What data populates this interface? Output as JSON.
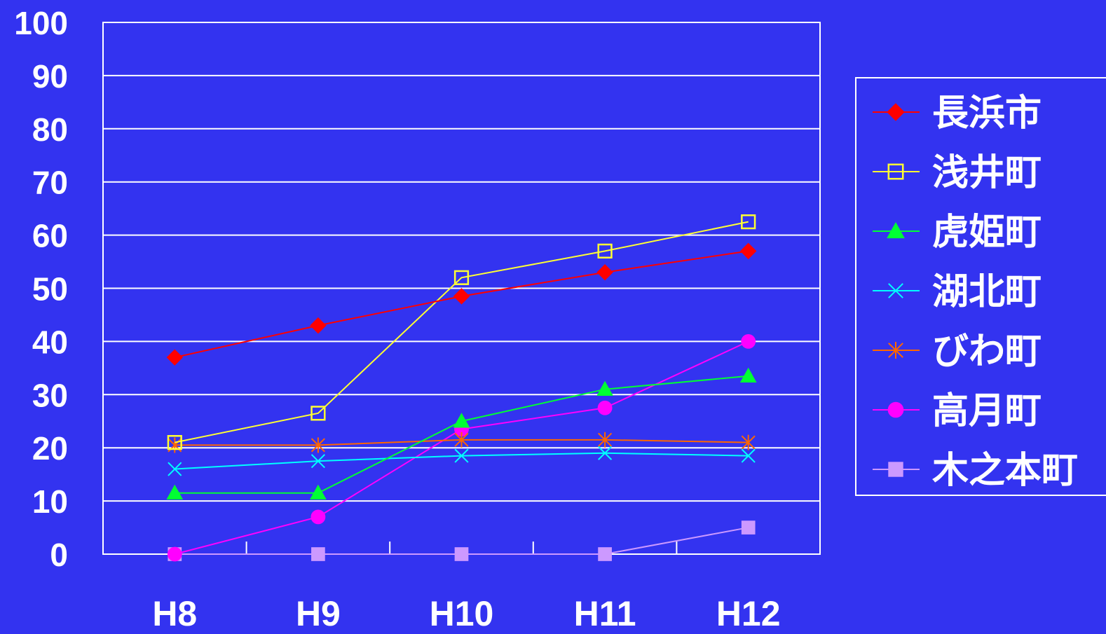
{
  "chart_data": {
    "type": "line",
    "categories": [
      "H8",
      "H9",
      "H10",
      "H11",
      "H12"
    ],
    "ylim": [
      0,
      100
    ],
    "yticks": [
      "0",
      "10",
      "20",
      "30",
      "40",
      "50",
      "60",
      "70",
      "80",
      "90",
      "100"
    ],
    "grid": true,
    "legend_position": "right",
    "colors": {
      "background": "#3333f0",
      "plot_area": "#3333f0",
      "grid": "#ffffff",
      "text": "#ffffff"
    },
    "series": [
      {
        "name": "長浜市",
        "color": "#ff0000",
        "marker": "diamond-filled",
        "values": [
          37,
          43,
          48.5,
          53,
          57
        ]
      },
      {
        "name": "浅井町",
        "color": "#ffff33",
        "marker": "square-open",
        "values": [
          21,
          26.5,
          52,
          57,
          62.5
        ]
      },
      {
        "name": "虎姫町",
        "color": "#00ff33",
        "marker": "triangle-filled",
        "values": [
          11.5,
          11.5,
          25,
          31,
          33.5
        ]
      },
      {
        "name": "湖北町",
        "color": "#00ffff",
        "marker": "x",
        "values": [
          16,
          17.5,
          18.5,
          19,
          18.5
        ]
      },
      {
        "name": "びわ町",
        "color": "#ff6600",
        "marker": "asterisk",
        "values": [
          20.5,
          20.5,
          21.5,
          21.5,
          21
        ]
      },
      {
        "name": "高月町",
        "color": "#ff00ff",
        "marker": "circle-filled",
        "values": [
          0,
          7,
          23.5,
          27.5,
          40
        ]
      },
      {
        "name": "木之本町",
        "color": "#cc99ff",
        "marker": "square-filled",
        "values": [
          0,
          0,
          0,
          0,
          5
        ]
      }
    ]
  }
}
